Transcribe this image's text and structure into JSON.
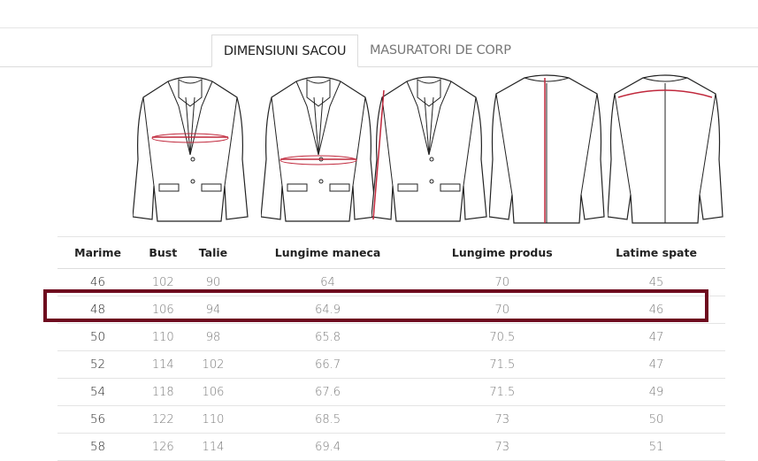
{
  "tabs": [
    {
      "label": "DIMENSIUNI SACOU",
      "active": true
    },
    {
      "label": "MASURATORI DE CORP",
      "active": false
    }
  ],
  "illustrations": [
    {
      "icon": "jacket-front-bust-icon",
      "measure": "Bust"
    },
    {
      "icon": "jacket-front-waist-icon",
      "measure": "Talie"
    },
    {
      "icon": "jacket-front-sleeve-icon",
      "measure": "Lungime maneca"
    },
    {
      "icon": "jacket-back-length-icon",
      "measure": "Lungime produs"
    },
    {
      "icon": "jacket-back-width-icon",
      "measure": "Latime spate"
    }
  ],
  "colors": {
    "accent": "#6e0a1e",
    "measure_line": "#c0283c"
  },
  "table": {
    "headers": [
      "Marime",
      "Bust",
      "Talie",
      "Lungime maneca",
      "Lungime produs",
      "Latime spate"
    ],
    "rows": [
      [
        "46",
        "102",
        "90",
        "64",
        "70",
        "45"
      ],
      [
        "48",
        "106",
        "94",
        "64.9",
        "70",
        "46"
      ],
      [
        "50",
        "110",
        "98",
        "65.8",
        "70.5",
        "47"
      ],
      [
        "52",
        "114",
        "102",
        "66.7",
        "71.5",
        "47"
      ],
      [
        "54",
        "118",
        "106",
        "67.6",
        "71.5",
        "49"
      ],
      [
        "56",
        "122",
        "110",
        "68.5",
        "73",
        "50"
      ],
      [
        "58",
        "126",
        "114",
        "69.4",
        "73",
        "51"
      ]
    ],
    "highlighted_row": "48"
  }
}
